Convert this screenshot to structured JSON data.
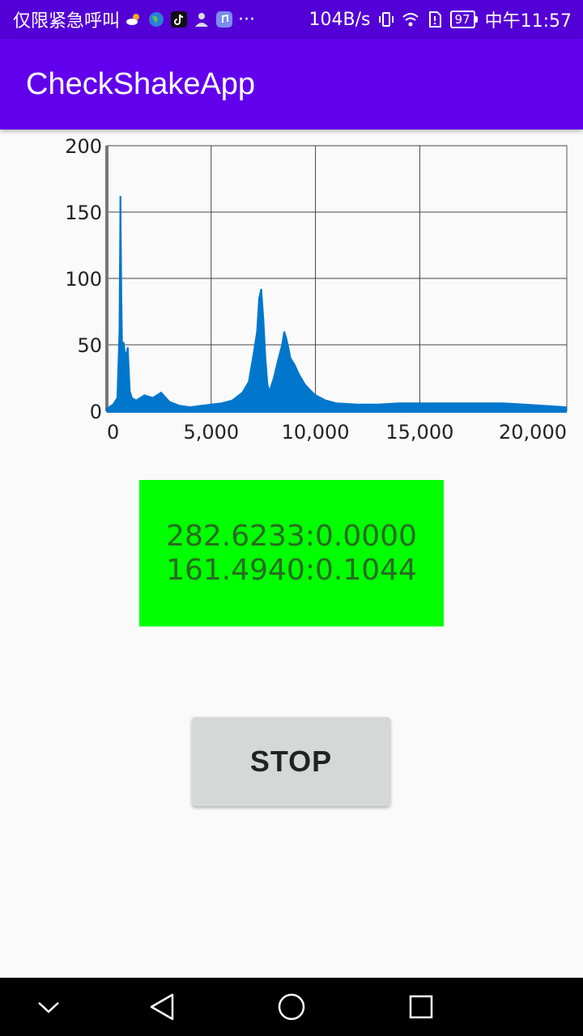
{
  "status_bar": {
    "carrier_text": "仅限紧急呼叫",
    "speed": "104B/s",
    "battery": "97",
    "time": "中午11:57",
    "more": "···",
    "icons": [
      "weather-icon",
      "globe-icon",
      "tiktok-icon",
      "profile-icon",
      "music-icon",
      "vibrate-icon",
      "wifi-icon",
      "sim-alert-icon",
      "battery-icon"
    ]
  },
  "app_bar": {
    "title": "CheckShakeApp"
  },
  "chart_data": {
    "type": "area",
    "title": "",
    "xlabel": "",
    "ylabel": "",
    "xlim": [
      0,
      22050
    ],
    "ylim": [
      0,
      200
    ],
    "x_ticks": [
      0,
      5000,
      10000,
      15000,
      20000
    ],
    "x_tick_labels": [
      "0",
      "5,000",
      "10,000",
      "15,000",
      "20,000"
    ],
    "y_ticks": [
      0,
      50,
      100,
      150,
      200
    ],
    "y_tick_labels": [
      "0",
      "50",
      "100",
      "150",
      "200"
    ],
    "grid": true,
    "series": [
      {
        "color": "#0077cc",
        "x": [
          0,
          300,
          500,
          600,
          650,
          700,
          750,
          800,
          900,
          1000,
          1100,
          1200,
          1400,
          1800,
          2200,
          2600,
          3000,
          3500,
          4000,
          4500,
          5000,
          5500,
          6000,
          6500,
          6800,
          7000,
          7200,
          7300,
          7400,
          7500,
          7600,
          7700,
          7800,
          8000,
          8200,
          8400,
          8500,
          8600,
          8700,
          8800,
          9000,
          9200,
          9500,
          9800,
          10000,
          10500,
          11000,
          12000,
          13000,
          14000,
          15000,
          16000,
          17000,
          18000,
          19000,
          20000,
          21000,
          22000
        ],
        "values": [
          2,
          5,
          10,
          60,
          162,
          80,
          30,
          52,
          40,
          48,
          15,
          10,
          8,
          12,
          10,
          14,
          7,
          4,
          3,
          4,
          5,
          6,
          8,
          14,
          22,
          40,
          60,
          85,
          92,
          70,
          40,
          20,
          15,
          25,
          38,
          50,
          60,
          55,
          48,
          40,
          35,
          28,
          20,
          15,
          12,
          8,
          6,
          5,
          5,
          6,
          6,
          6,
          6,
          6,
          6,
          5,
          4,
          3
        ]
      }
    ]
  },
  "result": {
    "line1": "282.6233:0.0000",
    "line2": "161.4940:0.1044",
    "background": "#00ff00"
  },
  "stop_button": {
    "label": "STOP"
  },
  "nav_bar": {
    "icons": [
      "chevron-down-icon",
      "back-icon",
      "home-icon",
      "recents-icon"
    ]
  }
}
